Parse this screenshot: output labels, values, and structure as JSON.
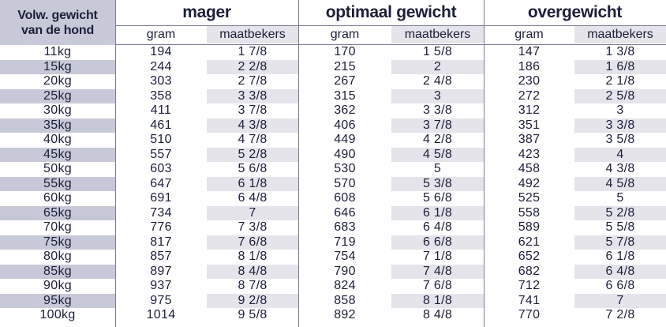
{
  "corner": {
    "line1": "Volw. gewicht",
    "line2": "van de hond"
  },
  "groups": [
    {
      "title": "mager",
      "sub1": "gram",
      "sub2": "maatbekers"
    },
    {
      "title": "optimaal gewicht",
      "sub1": "gram",
      "sub2": "maatbekers"
    },
    {
      "title": "overgewicht",
      "sub1": "gram",
      "sub2": "maatbekers"
    }
  ],
  "rows": [
    [
      "11kg",
      "194",
      "1 7/8",
      "170",
      "1 5/8",
      "147",
      "1 3/8"
    ],
    [
      "15kg",
      "244",
      "2 2/8",
      "215",
      "2",
      "186",
      "1 6/8"
    ],
    [
      "20kg",
      "303",
      "2 7/8",
      "267",
      "2 4/8",
      "230",
      "2 1/8"
    ],
    [
      "25kg",
      "358",
      "3 3/8",
      "315",
      "3",
      "272",
      "2 5/8"
    ],
    [
      "30kg",
      "411",
      "3 7/8",
      "362",
      "3 3/8",
      "312",
      "3"
    ],
    [
      "35kg",
      "461",
      "4 3/8",
      "406",
      "3 7/8",
      "351",
      "3 3/8"
    ],
    [
      "40kg",
      "510",
      "4 7/8",
      "449",
      "4 2/8",
      "387",
      "3 5/8"
    ],
    [
      "45kg",
      "557",
      "5 2/8",
      "490",
      "4 5/8",
      "423",
      "4"
    ],
    [
      "50kg",
      "603",
      "5 6/8",
      "530",
      "5",
      "458",
      "4 3/8"
    ],
    [
      "55kg",
      "647",
      "6 1/8",
      "570",
      "5 3/8",
      "492",
      "4 5/8"
    ],
    [
      "60kg",
      "691",
      "6 4/8",
      "608",
      "5 6/8",
      "525",
      "5"
    ],
    [
      "65kg",
      "734",
      "7",
      "646",
      "6 1/8",
      "558",
      "5 2/8"
    ],
    [
      "70kg",
      "776",
      "7 3/8",
      "683",
      "6 4/8",
      "589",
      "5 5/8"
    ],
    [
      "75kg",
      "817",
      "7 6/8",
      "719",
      "6 6/8",
      "621",
      "5 7/8"
    ],
    [
      "80kg",
      "857",
      "8 1/8",
      "754",
      "7 1/8",
      "652",
      "6 1/8"
    ],
    [
      "85kg",
      "897",
      "8 4/8",
      "790",
      "7 4/8",
      "682",
      "6 4/8"
    ],
    [
      "90kg",
      "937",
      "8 7/8",
      "824",
      "7 6/8",
      "712",
      "6 6/8"
    ],
    [
      "95kg",
      "975",
      "9 2/8",
      "858",
      "8 1/8",
      "741",
      "7"
    ],
    [
      "100kg",
      "1014",
      "9 5/8",
      "892",
      "8 4/8",
      "770",
      "7 2/8"
    ]
  ]
}
